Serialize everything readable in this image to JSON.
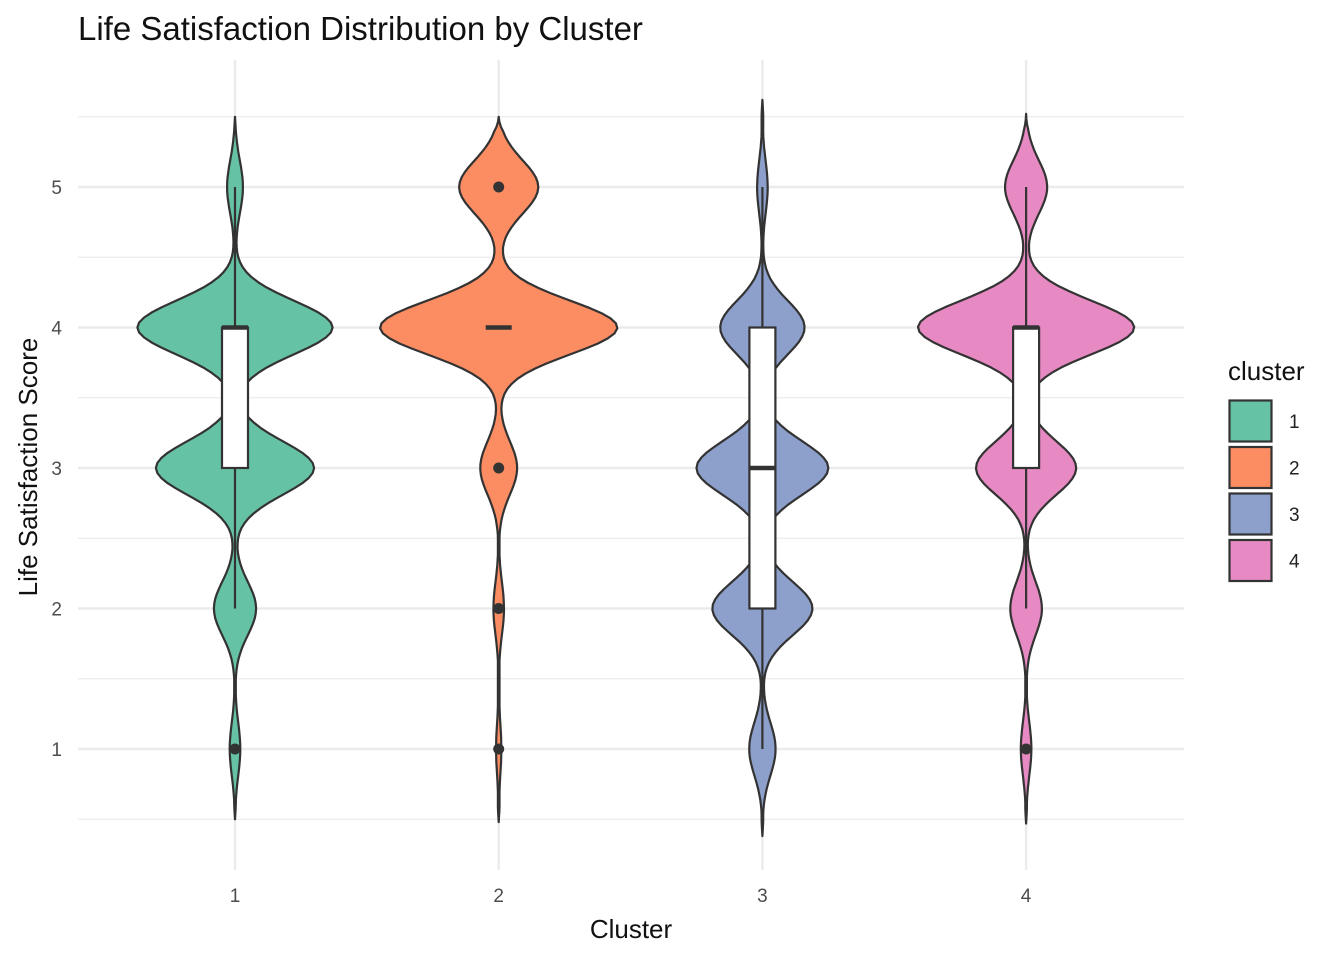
{
  "chart_data": {
    "type": "violin",
    "title": "Life Satisfaction Distribution by Cluster",
    "xlabel": "Cluster",
    "ylabel": "Life Satisfaction Score",
    "categories": [
      "1",
      "2",
      "3",
      "4"
    ],
    "y_ticks": [
      1,
      2,
      3,
      4,
      5
    ],
    "ylim": [
      0.4,
      5.65
    ],
    "grid": true,
    "legend": {
      "title": "cluster",
      "placement": "right",
      "entries": [
        "1",
        "2",
        "3",
        "4"
      ]
    },
    "colors": {
      "1": "#66C2A5",
      "2": "#FC8D62",
      "3": "#8DA0CB",
      "4": "#E78AC3"
    },
    "series": [
      {
        "category": "1",
        "density_peaks": [
          {
            "y": 1,
            "half_width": 0.02
          },
          {
            "y": 2,
            "half_width": 0.08
          },
          {
            "y": 3,
            "half_width": 0.3
          },
          {
            "y": 4,
            "half_width": 0.37
          },
          {
            "y": 5,
            "half_width": 0.03
          }
        ],
        "y_range": [
          0.5,
          5.5
        ],
        "box": {
          "q1": 3,
          "median": 4,
          "q3": 4,
          "whisker_low": 2,
          "whisker_high": 5
        },
        "outliers": [
          1
        ]
      },
      {
        "category": "2",
        "density_peaks": [
          {
            "y": 1,
            "half_width": 0.01
          },
          {
            "y": 2,
            "half_width": 0.02
          },
          {
            "y": 3,
            "half_width": 0.07
          },
          {
            "y": 4,
            "half_width": 0.45
          },
          {
            "y": 5,
            "half_width": 0.15
          }
        ],
        "y_range": [
          0.48,
          5.5
        ],
        "box": {
          "q1": 4,
          "median": 4,
          "q3": 4,
          "whisker_low": 4,
          "whisker_high": 4
        },
        "outliers": [
          1,
          2,
          3,
          5
        ]
      },
      {
        "category": "3",
        "density_peaks": [
          {
            "y": 1,
            "half_width": 0.05
          },
          {
            "y": 2,
            "half_width": 0.19
          },
          {
            "y": 3,
            "half_width": 0.25
          },
          {
            "y": 4,
            "half_width": 0.16
          },
          {
            "y": 5,
            "half_width": 0.02
          }
        ],
        "y_range": [
          0.38,
          5.62
        ],
        "box": {
          "q1": 2,
          "median": 3,
          "q3": 4,
          "whisker_low": 1,
          "whisker_high": 5
        },
        "outliers": []
      },
      {
        "category": "4",
        "density_peaks": [
          {
            "y": 1,
            "half_width": 0.02
          },
          {
            "y": 2,
            "half_width": 0.06
          },
          {
            "y": 3,
            "half_width": 0.19
          },
          {
            "y": 4,
            "half_width": 0.41
          },
          {
            "y": 5,
            "half_width": 0.08
          }
        ],
        "y_range": [
          0.47,
          5.52
        ],
        "box": {
          "q1": 3,
          "median": 4,
          "q3": 4,
          "whisker_low": 2,
          "whisker_high": 5
        },
        "outliers": [
          1
        ]
      }
    ]
  }
}
